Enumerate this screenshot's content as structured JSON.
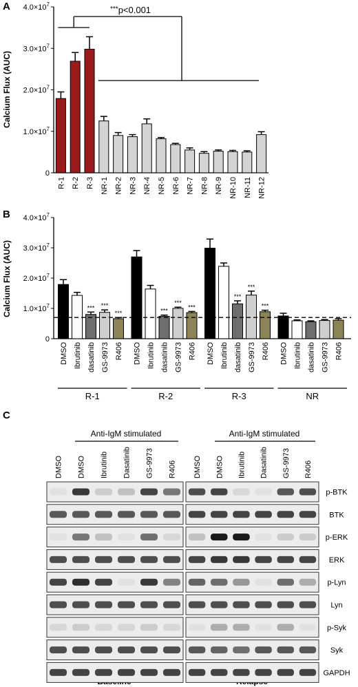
{
  "colors": {
    "responder_red": "#9b1a1b",
    "nonresponder_gray": "#d4d4d4",
    "dmso_black": "#000000",
    "ibrutinib_white": "#ffffff",
    "dasatinib_gray": "#6e6e6e",
    "gs9973_lightgray": "#cfcfcf",
    "r406_olive": "#8c8457"
  },
  "chart_data": [
    {
      "panel": "A",
      "type": "bar",
      "ylabel": "Calcium Flux (AUC)",
      "ylim": [
        0,
        40000000
      ],
      "yticks": [
        {
          "value": 0,
          "label": "0"
        },
        {
          "value": 10000000,
          "mant": "1.0×10",
          "exp": "7"
        },
        {
          "value": 20000000,
          "mant": "2.0×10",
          "exp": "7"
        },
        {
          "value": 30000000,
          "mant": "3.0×10",
          "exp": "7"
        },
        {
          "value": 40000000,
          "mant": "4.0×10",
          "exp": "7"
        }
      ],
      "categories": [
        "R-1",
        "R-2",
        "R-3",
        "NR-1",
        "NR-2",
        "NR-3",
        "NR-4",
        "NR-5",
        "NR-6",
        "NR-7",
        "NR-8",
        "NR-9",
        "NR-10",
        "NR-11",
        "NR-12"
      ],
      "values": [
        17900000,
        26900000,
        29800000,
        12500000,
        9000000,
        8700000,
        11800000,
        8200000,
        6800000,
        5500000,
        4700000,
        5200000,
        5100000,
        5000000,
        9200000
      ],
      "errors": [
        1600000,
        2100000,
        3000000,
        1100000,
        700000,
        500000,
        1200000,
        300000,
        300000,
        500000,
        400000,
        300000,
        300000,
        300000,
        700000
      ],
      "groups": [
        "R",
        "R",
        "R",
        "NR",
        "NR",
        "NR",
        "NR",
        "NR",
        "NR",
        "NR",
        "NR",
        "NR",
        "NR",
        "NR",
        "NR"
      ],
      "annotation": {
        "stars": "***",
        "text": "p<0.001"
      }
    },
    {
      "panel": "B",
      "type": "bar",
      "ylabel": "Calcium Flux (AUC)",
      "ylim": [
        0,
        40000000
      ],
      "yticks": [
        {
          "value": 0,
          "label": "0"
        },
        {
          "value": 10000000,
          "mant": "1.0×10",
          "exp": "7"
        },
        {
          "value": 20000000,
          "mant": "2.0×10",
          "exp": "7"
        },
        {
          "value": 30000000,
          "mant": "3.0×10",
          "exp": "7"
        },
        {
          "value": 40000000,
          "mant": "4.0×10",
          "exp": "7"
        }
      ],
      "reference_line": 7000000,
      "categories": [
        "DMSO",
        "Ibrutinib",
        "dasatinib",
        "GS-9973",
        "R406"
      ],
      "groups": [
        {
          "name": "R-1",
          "values": [
            17900000,
            14300000,
            8000000,
            8700000,
            6600000
          ],
          "errors": [
            1600000,
            1000000,
            800000,
            800000,
            400000
          ],
          "sig": [
            "",
            "",
            "***",
            "***",
            "***"
          ]
        },
        {
          "name": "R-2",
          "values": [
            27000000,
            16400000,
            7400000,
            10000000,
            8600000
          ],
          "errors": [
            2100000,
            1200000,
            400000,
            400000,
            400000
          ],
          "sig": [
            "",
            "",
            "***",
            "***",
            "***"
          ]
        },
        {
          "name": "R-3",
          "values": [
            29900000,
            23900000,
            11500000,
            14400000,
            8900000
          ],
          "errors": [
            3000000,
            1100000,
            1000000,
            1300000,
            500000
          ],
          "sig": [
            "",
            "",
            "***",
            "***",
            "***"
          ]
        },
        {
          "name": "NR",
          "values": [
            7500000,
            5900000,
            5600000,
            6000000,
            6100000
          ],
          "errors": [
            900000,
            300000,
            300000,
            300000,
            500000
          ],
          "sig": [
            "",
            "",
            "",
            "",
            ""
          ]
        }
      ]
    }
  ],
  "panel_labels": {
    "a": "A",
    "b": "B",
    "c": "C"
  },
  "blots": {
    "baseline_lanes": [
      "DMSO",
      "DMSO",
      "Ibrutinib",
      "Dasatinib",
      "GS-9973",
      "R406"
    ],
    "relapse_lanes": [
      "DMSO",
      "DMSO",
      "Ibrutinib",
      "Dasatinib",
      "GS-9973",
      "R406"
    ],
    "stim_label": "Anti-IgM stimulated",
    "proteins": [
      "p-BTK",
      "BTK",
      "p-ERK",
      "ERK",
      "p-Lyn",
      "Lyn",
      "p-Syk",
      "Syk",
      "GAPDH"
    ],
    "baseline_intensity": [
      [
        0.05,
        0.85,
        0.15,
        0.2,
        0.8,
        0.55
      ],
      [
        0.7,
        0.7,
        0.7,
        0.7,
        0.7,
        0.7
      ],
      [
        0.05,
        0.55,
        0.2,
        0.05,
        0.6,
        0.1
      ],
      [
        0.75,
        0.75,
        0.75,
        0.75,
        0.75,
        0.75
      ],
      [
        0.8,
        0.9,
        0.8,
        0.05,
        0.85,
        0.5
      ],
      [
        0.75,
        0.75,
        0.75,
        0.75,
        0.75,
        0.75
      ],
      [
        0.1,
        0.15,
        0.1,
        0.1,
        0.15,
        0.1
      ],
      [
        0.75,
        0.75,
        0.75,
        0.75,
        0.75,
        0.75
      ],
      [
        0.8,
        0.8,
        0.8,
        0.8,
        0.8,
        0.8
      ]
    ],
    "relapse_intensity": [
      [
        0.75,
        0.8,
        0.1,
        0.05,
        0.7,
        0.75
      ],
      [
        0.8,
        0.8,
        0.8,
        0.8,
        0.8,
        0.8
      ],
      [
        0.2,
        1.0,
        1.0,
        0.05,
        0.15,
        0.15
      ],
      [
        0.8,
        0.85,
        0.85,
        0.8,
        0.8,
        0.8
      ],
      [
        0.65,
        0.6,
        0.4,
        0.05,
        0.6,
        0.3
      ],
      [
        0.75,
        0.75,
        0.75,
        0.75,
        0.75,
        0.75
      ],
      [
        0.05,
        0.3,
        0.3,
        0.05,
        0.3,
        0.05
      ],
      [
        0.7,
        0.65,
        0.6,
        0.7,
        0.7,
        0.7
      ],
      [
        0.8,
        0.8,
        0.8,
        0.8,
        0.8,
        0.8
      ]
    ],
    "baseline_caption": "Baseline",
    "relapse_caption": "Relapse"
  }
}
